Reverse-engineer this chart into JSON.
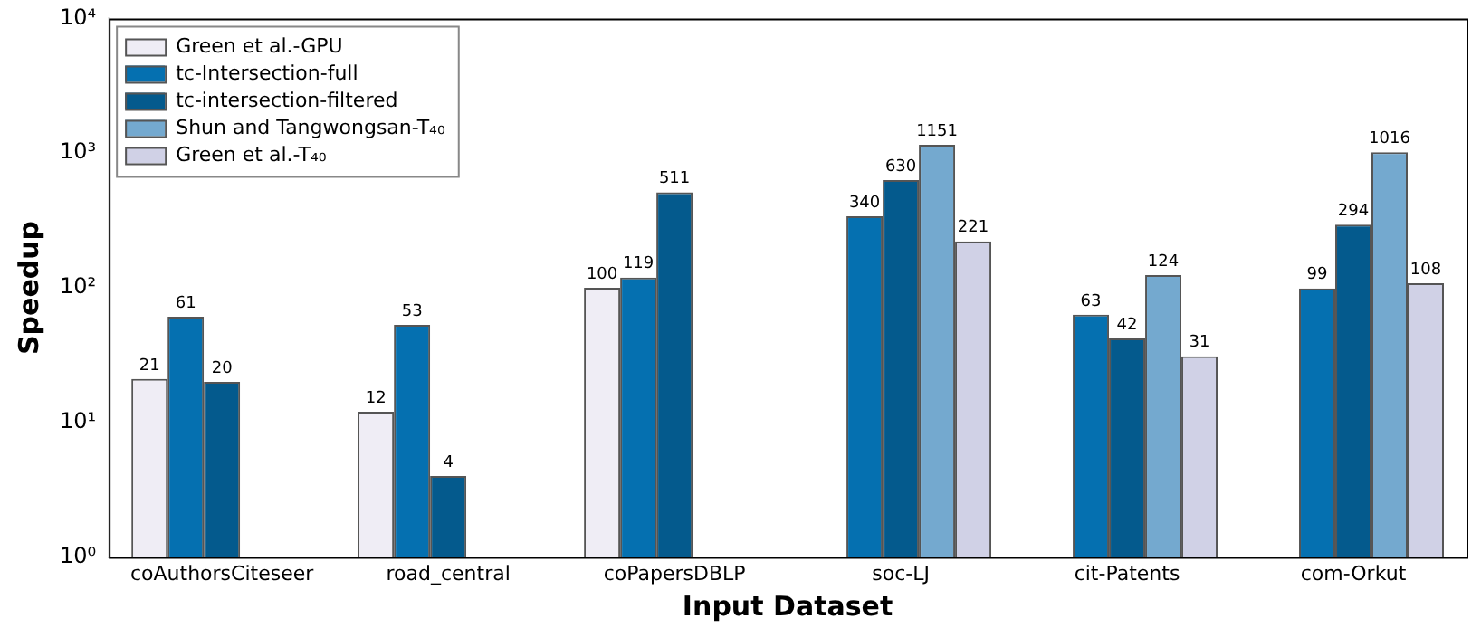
{
  "chart_data": {
    "type": "bar",
    "xlabel": "Input Dataset",
    "ylabel": "Speedup",
    "categories": [
      "coAuthorsCiteseer",
      "road_central",
      "coPapersDBLP",
      "soc-LJ",
      "cit-Patents",
      "com-Orkut"
    ],
    "series": [
      {
        "name": "Green et al.-GPU",
        "color": "#efedf5",
        "values": [
          21,
          12,
          100,
          null,
          null,
          null
        ]
      },
      {
        "name": "tc-Intersection-full",
        "color": "#0570b0",
        "values": [
          61,
          53,
          119,
          340,
          63,
          99
        ]
      },
      {
        "name": "tc-intersection-filtered",
        "color": "#045a8d",
        "values": [
          20,
          4,
          511,
          630,
          42,
          294
        ]
      },
      {
        "name": "Shun and Tangwongsan-T₄₀",
        "color": "#74a9cf",
        "values": [
          null,
          null,
          null,
          1151,
          124,
          1016
        ]
      },
      {
        "name": "Green et al.-T₄₀",
        "color": "#d0d1e6",
        "values": [
          null,
          null,
          null,
          221,
          31,
          108
        ]
      }
    ],
    "log": "y",
    "ylim": [
      1,
      10000
    ],
    "yticks": [
      {
        "value": 1,
        "label": "10⁰"
      },
      {
        "value": 10,
        "label": "10¹"
      },
      {
        "value": 100,
        "label": "10²"
      },
      {
        "value": 1000,
        "label": "10³"
      },
      {
        "value": 10000,
        "label": "10⁴"
      }
    ],
    "grid": false,
    "legend": "top left",
    "data_labels": true
  }
}
